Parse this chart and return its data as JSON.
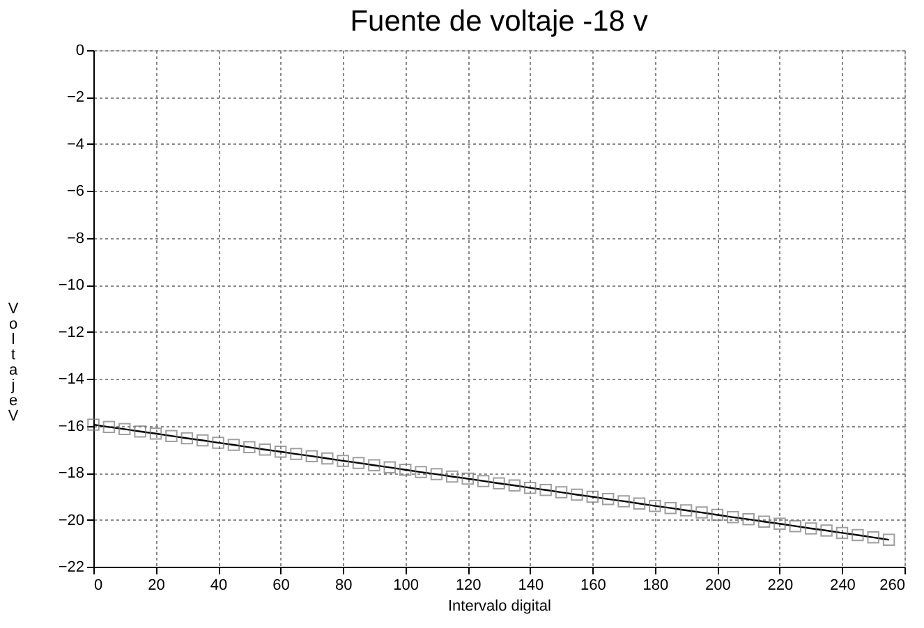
{
  "chart_data": {
    "type": "line",
    "title": "Fuente de voltaje -18 v",
    "xlabel": "Intervalo digital",
    "ylabel": "Voltaje V",
    "x": [
      0,
      5,
      10,
      15,
      20,
      25,
      30,
      35,
      40,
      45,
      50,
      55,
      60,
      65,
      70,
      75,
      80,
      85,
      90,
      95,
      100,
      105,
      110,
      115,
      120,
      125,
      130,
      135,
      140,
      145,
      150,
      155,
      160,
      165,
      170,
      175,
      180,
      185,
      190,
      195,
      200,
      205,
      210,
      215,
      220,
      225,
      230,
      235,
      240,
      245,
      250,
      255
    ],
    "series": [
      {
        "color": "#000000",
        "values": [
          -15.95,
          -16.05,
          -16.14,
          -16.24,
          -16.33,
          -16.43,
          -16.53,
          -16.62,
          -16.72,
          -16.81,
          -16.91,
          -17.01,
          -17.1,
          -17.2,
          -17.29,
          -17.39,
          -17.49,
          -17.58,
          -17.68,
          -17.77,
          -17.87,
          -17.97,
          -18.06,
          -18.16,
          -18.25,
          -18.35,
          -18.45,
          -18.54,
          -18.64,
          -18.73,
          -18.83,
          -18.93,
          -19.02,
          -19.12,
          -19.21,
          -19.31,
          -19.41,
          -19.5,
          -19.6,
          -19.69,
          -19.79,
          -19.89,
          -19.98,
          -20.08,
          -20.17,
          -20.27,
          -20.37,
          -20.46,
          -20.56,
          -20.65,
          -20.75,
          -20.85
        ]
      }
    ],
    "xlim": [
      0,
      260
    ],
    "xticks": [
      0,
      20,
      40,
      60,
      80,
      100,
      120,
      140,
      160,
      180,
      200,
      220,
      240,
      260
    ],
    "ylim": [
      -22,
      0
    ],
    "yticks": [
      -22,
      -20,
      -18,
      -16,
      -14,
      -12,
      -10,
      -8,
      -6,
      -4,
      -2,
      0
    ],
    "grid": true,
    "marker": "square",
    "line_style": "solid"
  }
}
